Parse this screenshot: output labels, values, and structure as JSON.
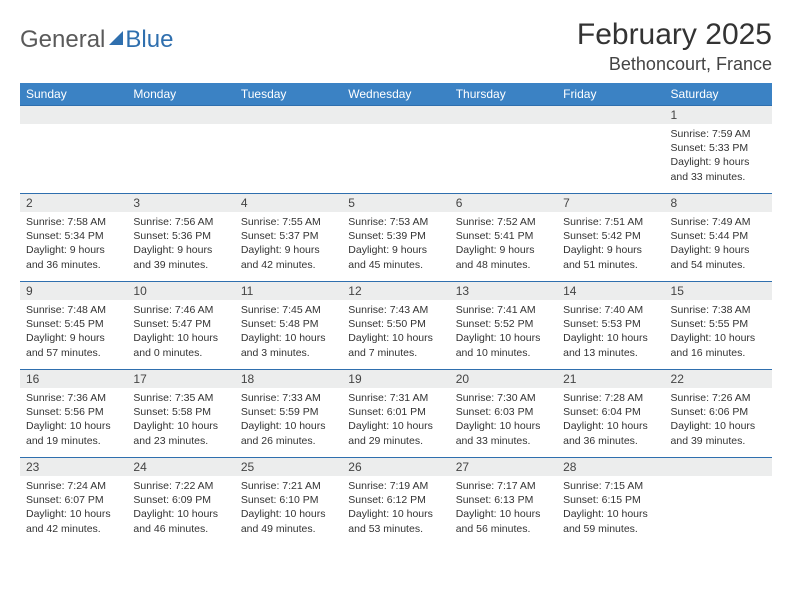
{
  "logo": {
    "text1": "General",
    "text2": "Blue"
  },
  "title": "February 2025",
  "location": "Bethoncourt, France",
  "colors": {
    "header_bg": "#3b82c4",
    "header_text": "#ffffff",
    "daynum_bg": "#eceded",
    "border": "#2f6fae",
    "logo_gray": "#5a5a5a",
    "logo_blue": "#2f6fae"
  },
  "day_headers": [
    "Sunday",
    "Monday",
    "Tuesday",
    "Wednesday",
    "Thursday",
    "Friday",
    "Saturday"
  ],
  "weeks": [
    [
      null,
      null,
      null,
      null,
      null,
      null,
      {
        "n": "1",
        "sr": "Sunrise: 7:59 AM",
        "ss": "Sunset: 5:33 PM",
        "d1": "Daylight: 9 hours",
        "d2": "and 33 minutes."
      }
    ],
    [
      {
        "n": "2",
        "sr": "Sunrise: 7:58 AM",
        "ss": "Sunset: 5:34 PM",
        "d1": "Daylight: 9 hours",
        "d2": "and 36 minutes."
      },
      {
        "n": "3",
        "sr": "Sunrise: 7:56 AM",
        "ss": "Sunset: 5:36 PM",
        "d1": "Daylight: 9 hours",
        "d2": "and 39 minutes."
      },
      {
        "n": "4",
        "sr": "Sunrise: 7:55 AM",
        "ss": "Sunset: 5:37 PM",
        "d1": "Daylight: 9 hours",
        "d2": "and 42 minutes."
      },
      {
        "n": "5",
        "sr": "Sunrise: 7:53 AM",
        "ss": "Sunset: 5:39 PM",
        "d1": "Daylight: 9 hours",
        "d2": "and 45 minutes."
      },
      {
        "n": "6",
        "sr": "Sunrise: 7:52 AM",
        "ss": "Sunset: 5:41 PM",
        "d1": "Daylight: 9 hours",
        "d2": "and 48 minutes."
      },
      {
        "n": "7",
        "sr": "Sunrise: 7:51 AM",
        "ss": "Sunset: 5:42 PM",
        "d1": "Daylight: 9 hours",
        "d2": "and 51 minutes."
      },
      {
        "n": "8",
        "sr": "Sunrise: 7:49 AM",
        "ss": "Sunset: 5:44 PM",
        "d1": "Daylight: 9 hours",
        "d2": "and 54 minutes."
      }
    ],
    [
      {
        "n": "9",
        "sr": "Sunrise: 7:48 AM",
        "ss": "Sunset: 5:45 PM",
        "d1": "Daylight: 9 hours",
        "d2": "and 57 minutes."
      },
      {
        "n": "10",
        "sr": "Sunrise: 7:46 AM",
        "ss": "Sunset: 5:47 PM",
        "d1": "Daylight: 10 hours",
        "d2": "and 0 minutes."
      },
      {
        "n": "11",
        "sr": "Sunrise: 7:45 AM",
        "ss": "Sunset: 5:48 PM",
        "d1": "Daylight: 10 hours",
        "d2": "and 3 minutes."
      },
      {
        "n": "12",
        "sr": "Sunrise: 7:43 AM",
        "ss": "Sunset: 5:50 PM",
        "d1": "Daylight: 10 hours",
        "d2": "and 7 minutes."
      },
      {
        "n": "13",
        "sr": "Sunrise: 7:41 AM",
        "ss": "Sunset: 5:52 PM",
        "d1": "Daylight: 10 hours",
        "d2": "and 10 minutes."
      },
      {
        "n": "14",
        "sr": "Sunrise: 7:40 AM",
        "ss": "Sunset: 5:53 PM",
        "d1": "Daylight: 10 hours",
        "d2": "and 13 minutes."
      },
      {
        "n": "15",
        "sr": "Sunrise: 7:38 AM",
        "ss": "Sunset: 5:55 PM",
        "d1": "Daylight: 10 hours",
        "d2": "and 16 minutes."
      }
    ],
    [
      {
        "n": "16",
        "sr": "Sunrise: 7:36 AM",
        "ss": "Sunset: 5:56 PM",
        "d1": "Daylight: 10 hours",
        "d2": "and 19 minutes."
      },
      {
        "n": "17",
        "sr": "Sunrise: 7:35 AM",
        "ss": "Sunset: 5:58 PM",
        "d1": "Daylight: 10 hours",
        "d2": "and 23 minutes."
      },
      {
        "n": "18",
        "sr": "Sunrise: 7:33 AM",
        "ss": "Sunset: 5:59 PM",
        "d1": "Daylight: 10 hours",
        "d2": "and 26 minutes."
      },
      {
        "n": "19",
        "sr": "Sunrise: 7:31 AM",
        "ss": "Sunset: 6:01 PM",
        "d1": "Daylight: 10 hours",
        "d2": "and 29 minutes."
      },
      {
        "n": "20",
        "sr": "Sunrise: 7:30 AM",
        "ss": "Sunset: 6:03 PM",
        "d1": "Daylight: 10 hours",
        "d2": "and 33 minutes."
      },
      {
        "n": "21",
        "sr": "Sunrise: 7:28 AM",
        "ss": "Sunset: 6:04 PM",
        "d1": "Daylight: 10 hours",
        "d2": "and 36 minutes."
      },
      {
        "n": "22",
        "sr": "Sunrise: 7:26 AM",
        "ss": "Sunset: 6:06 PM",
        "d1": "Daylight: 10 hours",
        "d2": "and 39 minutes."
      }
    ],
    [
      {
        "n": "23",
        "sr": "Sunrise: 7:24 AM",
        "ss": "Sunset: 6:07 PM",
        "d1": "Daylight: 10 hours",
        "d2": "and 42 minutes."
      },
      {
        "n": "24",
        "sr": "Sunrise: 7:22 AM",
        "ss": "Sunset: 6:09 PM",
        "d1": "Daylight: 10 hours",
        "d2": "and 46 minutes."
      },
      {
        "n": "25",
        "sr": "Sunrise: 7:21 AM",
        "ss": "Sunset: 6:10 PM",
        "d1": "Daylight: 10 hours",
        "d2": "and 49 minutes."
      },
      {
        "n": "26",
        "sr": "Sunrise: 7:19 AM",
        "ss": "Sunset: 6:12 PM",
        "d1": "Daylight: 10 hours",
        "d2": "and 53 minutes."
      },
      {
        "n": "27",
        "sr": "Sunrise: 7:17 AM",
        "ss": "Sunset: 6:13 PM",
        "d1": "Daylight: 10 hours",
        "d2": "and 56 minutes."
      },
      {
        "n": "28",
        "sr": "Sunrise: 7:15 AM",
        "ss": "Sunset: 6:15 PM",
        "d1": "Daylight: 10 hours",
        "d2": "and 59 minutes."
      },
      null
    ]
  ]
}
